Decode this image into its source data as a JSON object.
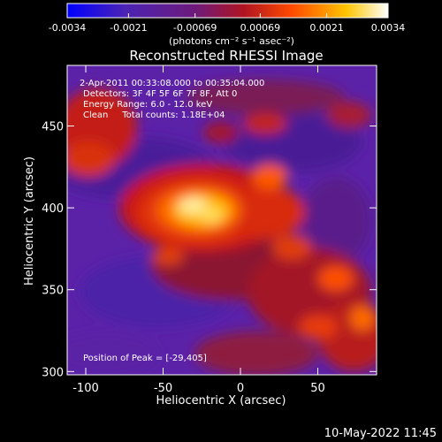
{
  "chart_data": {
    "type": "heatmap",
    "title": "Reconstructed RHESSI Image",
    "xlabel": "Heliocentric X (arcsec)",
    "ylabel": "Heliocentric Y (arcsec)",
    "xlim": [
      -112,
      88
    ],
    "ylim": [
      298,
      487
    ],
    "x_ticks": [
      -100,
      -50,
      0,
      50
    ],
    "y_ticks": [
      300,
      350,
      400,
      450
    ],
    "colorbar": {
      "ticks": [
        -0.0034,
        -0.0021,
        -0.00069,
        0.00069,
        0.0021,
        0.0034
      ],
      "tick_labels": [
        "-0.0034",
        "-0.0021",
        "-0.00069",
        "0.00069",
        "0.0021",
        "0.0034"
      ],
      "range": [
        -0.0034,
        0.0034
      ],
      "units_label": "(photons cm⁻² s⁻¹ asec⁻²)",
      "colors": [
        "#0000ff",
        "#5a1e9a",
        "#7a1a70",
        "#c01818",
        "#ff6a00",
        "#ffd000",
        "#ffffff"
      ]
    },
    "annotations": [
      "2-Apr-2011 00:33:08.000 to 00:35:04.000",
      "Detectors: 3F 4F 5F 6F 7F 8F, Att 0",
      "Energy Range: 6.0 - 12.0 keV",
      "Clean     Total counts: 1.18E+04",
      "Position of Peak = [-29,405]"
    ],
    "peak": [
      -29,
      405
    ]
  },
  "footer": {
    "date": "10-May-2022 11:45"
  }
}
